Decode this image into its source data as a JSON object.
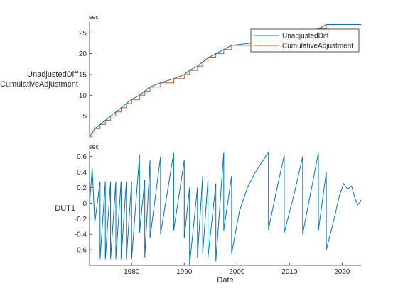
{
  "chart_data": [
    {
      "type": "line",
      "unit_label": "sec",
      "ylabel": [
        "UnadjustedDiff",
        "CumulativeAdjustment"
      ],
      "xlim": [
        1972,
        2023.6
      ],
      "ylim": [
        0,
        27.6
      ],
      "yticks": [
        5,
        10,
        15,
        20,
        25
      ],
      "grid": false,
      "legend_position": "top-right",
      "colors": {
        "UnadjustedDiff": "#0072bd",
        "CumulativeAdjustment": "#d95319"
      },
      "series": [
        {
          "name": "UnadjustedDiff",
          "x": [
            1972.0,
            1972.5,
            1973.0,
            1974.0,
            1975.0,
            1976.0,
            1977.0,
            1978.0,
            1979.0,
            1980.0,
            1981.5,
            1982.5,
            1983.5,
            1985.5,
            1988.0,
            1990.0,
            1991.0,
            1992.5,
            1993.5,
            1994.5,
            1996.0,
            1997.5,
            1999.0,
            2006.0,
            2009.0,
            2012.5,
            2015.5,
            2017.0,
            2023.6
          ],
          "y": [
            0.0,
            1.0,
            2.0,
            3.0,
            4.0,
            5.0,
            6.0,
            7.0,
            8.0,
            9.0,
            10.0,
            11.0,
            12.0,
            13.0,
            14.0,
            15.0,
            16.0,
            17.0,
            18.0,
            19.0,
            20.0,
            21.0,
            22.0,
            23.0,
            24.0,
            25.0,
            26.0,
            27.0,
            27.0
          ]
        },
        {
          "name": "CumulativeAdjustment",
          "x": [
            1972.0,
            1972.5,
            1973.0,
            1974.0,
            1975.0,
            1976.0,
            1977.0,
            1978.0,
            1979.0,
            1980.0,
            1981.5,
            1982.5,
            1983.5,
            1985.5,
            1988.0,
            1990.0,
            1991.0,
            1992.5,
            1993.5,
            1994.5,
            1996.0,
            1997.5,
            1999.0,
            2006.0,
            2009.0,
            2012.5,
            2015.5,
            2017.0,
            2023.6
          ],
          "y": [
            0.0,
            1.0,
            2.0,
            3.0,
            4.0,
            5.0,
            6.0,
            7.0,
            8.0,
            9.0,
            10.0,
            11.0,
            12.0,
            13.0,
            14.0,
            15.0,
            16.0,
            17.0,
            18.0,
            19.0,
            20.0,
            21.0,
            22.0,
            23.0,
            24.0,
            25.0,
            26.0,
            27.0,
            27.0
          ]
        }
      ]
    },
    {
      "type": "line",
      "unit_label": "sec",
      "ylabel": "DUT1",
      "xlabel": "Date",
      "xlim": [
        1972,
        2023.6
      ],
      "ylim": [
        -0.8,
        0.67
      ],
      "xticks": [
        1980,
        1990,
        2000,
        2010,
        2020
      ],
      "yticks": [
        -0.6,
        -0.4,
        -0.2,
        0,
        0.2,
        0.4,
        0.6
      ],
      "grid": false,
      "color": "#0072bd",
      "series": [
        {
          "name": "DUT1",
          "segments": [
            [
              [
                1972.0,
                -0.02
              ],
              [
                1972.5,
                0.45
              ]
            ],
            [
              [
                1972.5,
                0.45
              ],
              [
                1973.0,
                -0.25
              ],
              [
                1974.0,
                0.28
              ]
            ],
            [
              [
                1974.0,
                0.28
              ],
              [
                1974.0,
                -0.72
              ],
              [
                1975.0,
                0.28
              ]
            ],
            [
              [
                1975.0,
                0.28
              ],
              [
                1975.0,
                -0.72
              ],
              [
                1976.0,
                0.28
              ]
            ],
            [
              [
                1976.0,
                0.28
              ],
              [
                1976.0,
                -0.72
              ],
              [
                1977.0,
                0.28
              ]
            ],
            [
              [
                1977.0,
                0.28
              ],
              [
                1977.0,
                -0.72
              ],
              [
                1978.0,
                0.28
              ]
            ],
            [
              [
                1978.0,
                0.28
              ],
              [
                1978.0,
                -0.72
              ],
              [
                1979.0,
                0.28
              ]
            ],
            [
              [
                1979.0,
                0.28
              ],
              [
                1979.0,
                -0.72
              ],
              [
                1980.0,
                0.28
              ]
            ],
            [
              [
                1980.0,
                0.28
              ],
              [
                1980.0,
                -0.72
              ],
              [
                1981.5,
                0.62
              ]
            ],
            [
              [
                1981.5,
                0.62
              ],
              [
                1981.5,
                -0.38
              ],
              [
                1982.5,
                0.3
              ]
            ],
            [
              [
                1982.5,
                0.3
              ],
              [
                1982.5,
                -0.7
              ],
              [
                1983.5,
                0.55
              ]
            ],
            [
              [
                1983.5,
                0.55
              ],
              [
                1983.5,
                -0.45
              ],
              [
                1985.5,
                0.6
              ]
            ],
            [
              [
                1985.5,
                0.6
              ],
              [
                1985.5,
                -0.4
              ],
              [
                1988.0,
                0.65
              ]
            ],
            [
              [
                1988.0,
                0.65
              ],
              [
                1988.0,
                -0.35
              ],
              [
                1990.0,
                0.55
              ]
            ],
            [
              [
                1990.0,
                0.55
              ],
              [
                1990.0,
                -0.45
              ],
              [
                1991.0,
                0.2
              ]
            ],
            [
              [
                1991.0,
                0.2
              ],
              [
                1991.0,
                -0.8
              ],
              [
                1992.5,
                0.2
              ]
            ],
            [
              [
                1992.5,
                0.2
              ],
              [
                1992.5,
                -0.7
              ],
              [
                1993.5,
                0.35
              ]
            ],
            [
              [
                1993.5,
                0.35
              ],
              [
                1993.5,
                -0.65
              ],
              [
                1994.5,
                0.3
              ]
            ],
            [
              [
                1994.5,
                0.3
              ],
              [
                1994.5,
                -0.7
              ],
              [
                1996.0,
                0.25
              ]
            ],
            [
              [
                1996.0,
                0.25
              ],
              [
                1996.0,
                -0.75
              ],
              [
                1997.5,
                0.65
              ]
            ],
            [
              [
                1997.5,
                0.65
              ],
              [
                1997.5,
                -0.35
              ],
              [
                1999.0,
                0.35
              ]
            ],
            [
              [
                1999.0,
                0.35
              ],
              [
                1999.0,
                -0.65
              ],
              [
                2000.5,
                -0.1
              ],
              [
                2002.0,
                0.2
              ],
              [
                2003.5,
                0.4
              ],
              [
                2005.0,
                0.55
              ],
              [
                2006.0,
                0.66
              ]
            ],
            [
              [
                2006.0,
                0.66
              ],
              [
                2006.0,
                -0.34
              ],
              [
                2007.5,
                0.15
              ],
              [
                2009.0,
                0.62
              ]
            ],
            [
              [
                2009.0,
                0.62
              ],
              [
                2009.0,
                -0.38
              ],
              [
                2011.0,
                0.15
              ],
              [
                2012.5,
                0.6
              ]
            ],
            [
              [
                2012.5,
                0.6
              ],
              [
                2012.5,
                -0.4
              ],
              [
                2015.5,
                0.65
              ]
            ],
            [
              [
                2015.5,
                0.65
              ],
              [
                2015.5,
                -0.35
              ],
              [
                2017.0,
                0.4
              ]
            ],
            [
              [
                2017.0,
                0.4
              ],
              [
                2017.0,
                -0.6
              ],
              [
                2018.5,
                -0.2
              ],
              [
                2019.5,
                0.1
              ],
              [
                2020.3,
                0.25
              ],
              [
                2021.0,
                0.18
              ],
              [
                2021.8,
                0.22
              ],
              [
                2022.5,
                0.05
              ],
              [
                2023.0,
                -0.02
              ],
              [
                2023.6,
                0.04
              ]
            ]
          ]
        }
      ]
    }
  ]
}
